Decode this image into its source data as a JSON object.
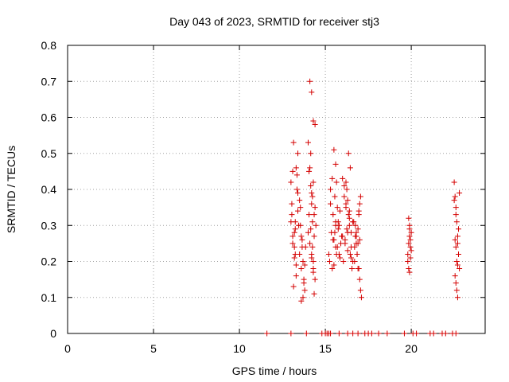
{
  "chart_data": {
    "type": "scatter",
    "title": "Day 043 of 2023, SRMTID for receiver stj3",
    "xlabel": "GPS time / hours",
    "ylabel": "SRMTID / TECUs",
    "xlim": [
      0,
      24.3
    ],
    "ylim": [
      0,
      0.8
    ],
    "grid": true,
    "xticks": [
      0,
      5,
      10,
      15,
      20
    ],
    "xtick_labels": [
      "0",
      "5",
      "10",
      "15",
      "20"
    ],
    "yticks": [
      0,
      0.1,
      0.2,
      0.3,
      0.4,
      0.5,
      0.6,
      0.7,
      0.8
    ],
    "ytick_labels": [
      "0",
      "0.1",
      "0.2",
      "0.3",
      "0.4",
      "0.5",
      "0.6",
      "0.7",
      "0.8"
    ],
    "marker_color": "#d40000",
    "series": [
      {
        "name": "SRMTID",
        "marker": "+",
        "x": [
          13.0,
          13.05,
          13.1,
          13.15,
          13.2,
          13.25,
          13.3,
          13.35,
          13.4,
          13.45,
          13.0,
          13.1,
          13.2,
          13.3,
          13.4,
          13.5,
          13.15,
          13.25,
          13.35,
          13.05,
          13.2,
          13.3,
          13.1,
          13.4,
          13.25,
          13.6,
          13.7,
          13.55,
          13.65,
          13.75,
          13.8,
          13.6,
          13.7,
          13.5,
          13.65,
          13.75,
          13.55,
          13.85,
          13.6,
          13.8,
          14.0,
          14.1,
          14.2,
          14.3,
          14.4,
          14.05,
          14.15,
          14.25,
          14.35,
          14.45,
          14.1,
          14.2,
          14.3,
          14.0,
          14.15,
          14.2,
          14.25,
          14.3,
          14.35,
          14.2,
          14.1,
          14.3,
          14.4,
          14.05,
          14.15,
          14.25,
          14.35,
          14.2,
          14.4,
          14.3,
          15.2,
          15.3,
          15.4,
          15.5,
          15.6,
          15.7,
          15.8,
          15.9,
          15.25,
          15.35,
          15.45,
          15.55,
          15.65,
          15.75,
          15.85,
          15.4,
          15.5,
          15.6,
          15.7,
          15.8,
          15.3,
          15.45,
          15.55,
          15.65,
          15.75,
          15.85,
          15.5,
          15.6,
          15.95,
          15.6,
          16.0,
          16.1,
          16.2,
          16.3,
          16.4,
          16.5,
          16.05,
          16.15,
          16.25,
          16.35,
          16.45,
          16.55,
          16.1,
          16.2,
          16.3,
          16.4,
          16.5,
          16.0,
          16.15,
          16.25,
          16.35,
          16.45,
          16.2,
          16.3,
          16.4,
          16.5,
          16.6,
          16.7,
          16.8,
          16.9,
          17.0,
          16.65,
          16.75,
          16.85,
          16.95,
          17.05,
          16.7,
          16.8,
          16.9,
          17.0,
          16.6,
          16.75,
          16.85,
          16.95,
          16.8,
          16.9,
          17.0,
          17.05,
          17.1,
          16.95,
          19.8,
          19.85,
          19.9,
          19.95,
          20.0,
          19.8,
          19.85,
          19.9,
          19.95,
          19.85,
          19.9,
          19.95,
          20.0,
          19.9,
          22.5,
          22.55,
          22.6,
          22.65,
          22.7,
          22.75,
          22.8,
          22.55,
          22.6,
          22.65,
          22.7,
          22.75,
          22.6,
          22.7,
          22.65,
          22.5,
          22.55,
          22.6,
          22.7,
          22.8,
          11.6,
          13.0,
          13.9,
          14.8,
          15.0,
          15.1,
          15.2,
          15.3,
          15.8,
          16.3,
          16.6,
          16.9,
          17.3,
          17.5,
          17.7,
          18.1,
          18.6,
          19.6,
          20.1,
          20.3,
          21.1,
          21.3,
          21.8,
          22.0,
          22.4,
          22.6
        ],
        "y": [
          0.31,
          0.36,
          0.45,
          0.53,
          0.28,
          0.22,
          0.19,
          0.4,
          0.34,
          0.3,
          0.42,
          0.27,
          0.24,
          0.16,
          0.5,
          0.37,
          0.13,
          0.29,
          0.44,
          0.33,
          0.21,
          0.46,
          0.25,
          0.39,
          0.31,
          0.27,
          0.2,
          0.35,
          0.24,
          0.15,
          0.12,
          0.18,
          0.1,
          0.22,
          0.26,
          0.14,
          0.3,
          0.24,
          0.09,
          0.19,
          0.53,
          0.7,
          0.67,
          0.59,
          0.58,
          0.45,
          0.5,
          0.38,
          0.33,
          0.3,
          0.25,
          0.21,
          0.18,
          0.28,
          0.41,
          0.36,
          0.31,
          0.42,
          0.27,
          0.22,
          0.46,
          0.2,
          0.15,
          0.33,
          0.29,
          0.24,
          0.11,
          0.39,
          0.35,
          0.17,
          0.22,
          0.4,
          0.43,
          0.51,
          0.47,
          0.35,
          0.3,
          0.25,
          0.2,
          0.28,
          0.33,
          0.38,
          0.42,
          0.29,
          0.21,
          0.18,
          0.26,
          0.31,
          0.24,
          0.22,
          0.36,
          0.26,
          0.28,
          0.22,
          0.31,
          0.34,
          0.19,
          0.24,
          0.27,
          0.3,
          0.43,
          0.38,
          0.35,
          0.28,
          0.32,
          0.24,
          0.2,
          0.26,
          0.29,
          0.33,
          0.22,
          0.18,
          0.41,
          0.36,
          0.23,
          0.3,
          0.21,
          0.27,
          0.25,
          0.4,
          0.5,
          0.46,
          0.42,
          0.37,
          0.34,
          0.28,
          0.31,
          0.2,
          0.25,
          0.29,
          0.36,
          0.31,
          0.27,
          0.22,
          0.33,
          0.38,
          0.24,
          0.28,
          0.18,
          0.26,
          0.2,
          0.3,
          0.22,
          0.34,
          0.27,
          0.25,
          0.15,
          0.12,
          0.1,
          0.18,
          0.22,
          0.32,
          0.29,
          0.26,
          0.23,
          0.2,
          0.25,
          0.27,
          0.21,
          0.18,
          0.3,
          0.24,
          0.28,
          0.17,
          0.42,
          0.38,
          0.35,
          0.31,
          0.27,
          0.22,
          0.18,
          0.16,
          0.14,
          0.12,
          0.1,
          0.29,
          0.33,
          0.25,
          0.2,
          0.37,
          0.26,
          0.24,
          0.19,
          0.39,
          0,
          0,
          0,
          0,
          0,
          0,
          0,
          0,
          0,
          0,
          0,
          0,
          0,
          0,
          0,
          0,
          0,
          0,
          0,
          0,
          0,
          0,
          0,
          0,
          0,
          0
        ]
      }
    ]
  }
}
